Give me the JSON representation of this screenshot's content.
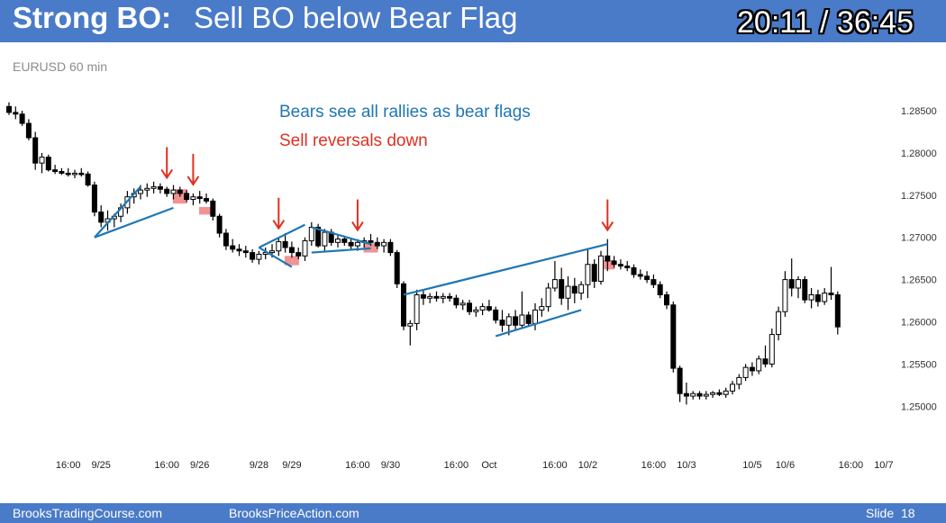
{
  "header": {
    "title_bold": "Strong BO:",
    "title_rest": "Sell BO below Bear Flag",
    "timer": "20:11 / 36:45"
  },
  "symbol_label": "EURUSD 60 min",
  "footer": {
    "left": "BrooksTradingCourse.com",
    "center": "BrooksPriceAction.com",
    "slide_label": "Slide",
    "slide_number": "18"
  },
  "colors": {
    "header_bg": "#4a7bc8",
    "trendline": "#1f77b4",
    "arrow": "#e03020",
    "highlight": "#f08080",
    "note_blue": "#1f77b4",
    "note_red": "#e03020"
  },
  "chart_data": {
    "type": "candlestick",
    "annotations": [
      "Bears see all rallies as bear flags",
      "Sell reversals down"
    ],
    "y_ticks": [
      "1.28500",
      "1.28000",
      "1.27500",
      "1.27000",
      "1.26500",
      "1.26000",
      "1.25500",
      "1.25000"
    ],
    "ylim": [
      1.247,
      1.287
    ],
    "x_ticks": [
      {
        "label": "16:00",
        "bar": 9
      },
      {
        "label": "9/25",
        "bar": 14
      },
      {
        "label": "16:00",
        "bar": 24
      },
      {
        "label": "9/26",
        "bar": 29
      },
      {
        "label": "9/28",
        "bar": 38
      },
      {
        "label": "9/29",
        "bar": 43
      },
      {
        "label": "16:00",
        "bar": 53
      },
      {
        "label": "9/30",
        "bar": 58
      },
      {
        "label": "16:00",
        "bar": 68
      },
      {
        "label": "Oct",
        "bar": 73
      },
      {
        "label": "16:00",
        "bar": 83
      },
      {
        "label": "10/2",
        "bar": 88
      },
      {
        "label": "16:00",
        "bar": 98
      },
      {
        "label": "10/3",
        "bar": 103
      },
      {
        "label": "10/5",
        "bar": 113
      },
      {
        "label": "10/6",
        "bar": 118
      },
      {
        "label": "16:00",
        "bar": 128
      },
      {
        "label": "10/7",
        "bar": 133
      }
    ],
    "candles": [
      [
        1.2855,
        1.286,
        1.2845,
        1.2848
      ],
      [
        1.2848,
        1.2855,
        1.284,
        1.2846
      ],
      [
        1.2846,
        1.285,
        1.2832,
        1.2835
      ],
      [
        1.2835,
        1.284,
        1.2815,
        1.2818
      ],
      [
        1.2818,
        1.2825,
        1.278,
        1.2788
      ],
      [
        1.2788,
        1.28,
        1.2776,
        1.2795
      ],
      [
        1.2795,
        1.2798,
        1.2778,
        1.278
      ],
      [
        1.278,
        1.2786,
        1.2775,
        1.2778
      ],
      [
        1.2778,
        1.2782,
        1.2774,
        1.2776
      ],
      [
        1.2776,
        1.2782,
        1.2772,
        1.2775
      ],
      [
        1.2775,
        1.278,
        1.277,
        1.2776
      ],
      [
        1.2776,
        1.2782,
        1.2772,
        1.2775
      ],
      [
        1.2775,
        1.2778,
        1.276,
        1.2762
      ],
      [
        1.2762,
        1.2766,
        1.2725,
        1.273
      ],
      [
        1.273,
        1.2738,
        1.2712,
        1.2718
      ],
      [
        1.2718,
        1.2732,
        1.2708,
        1.2722
      ],
      [
        1.2722,
        1.2728,
        1.2712,
        1.2725
      ],
      [
        1.2725,
        1.274,
        1.2718,
        1.2735
      ],
      [
        1.2735,
        1.2755,
        1.2728,
        1.2748
      ],
      [
        1.2748,
        1.2758,
        1.274,
        1.2752
      ],
      [
        1.2752,
        1.2762,
        1.2745,
        1.2756
      ],
      [
        1.2756,
        1.2764,
        1.2748,
        1.2758
      ],
      [
        1.2758,
        1.2766,
        1.2752,
        1.276
      ],
      [
        1.276,
        1.2764,
        1.2752,
        1.2757
      ],
      [
        1.2757,
        1.276,
        1.2748,
        1.2752
      ],
      [
        1.2752,
        1.2762,
        1.2745,
        1.2756
      ],
      [
        1.2756,
        1.276,
        1.2748,
        1.2752
      ],
      [
        1.2752,
        1.2756,
        1.2742,
        1.2745
      ],
      [
        1.2745,
        1.2752,
        1.2738,
        1.2748
      ],
      [
        1.2748,
        1.2755,
        1.274,
        1.2746
      ],
      [
        1.2746,
        1.2752,
        1.274,
        1.2743
      ],
      [
        1.2743,
        1.2746,
        1.272,
        1.2725
      ],
      [
        1.2725,
        1.2728,
        1.27,
        1.2705
      ],
      [
        1.2705,
        1.271,
        1.2685,
        1.269
      ],
      [
        1.269,
        1.2698,
        1.2682,
        1.2686
      ],
      [
        1.2686,
        1.2692,
        1.2678,
        1.2684
      ],
      [
        1.2684,
        1.269,
        1.2676,
        1.2682
      ],
      [
        1.2682,
        1.2686,
        1.267,
        1.2674
      ],
      [
        1.2674,
        1.2684,
        1.2668,
        1.268
      ],
      [
        1.268,
        1.2688,
        1.2674,
        1.2682
      ],
      [
        1.2682,
        1.2692,
        1.2676,
        1.2684
      ],
      [
        1.2684,
        1.27,
        1.2678,
        1.2695
      ],
      [
        1.2695,
        1.2705,
        1.2682,
        1.2688
      ],
      [
        1.2688,
        1.2695,
        1.2676,
        1.2682
      ],
      [
        1.2682,
        1.2688,
        1.2674,
        1.2678
      ],
      [
        1.2678,
        1.27,
        1.2672,
        1.2696
      ],
      [
        1.2696,
        1.2718,
        1.269,
        1.2712
      ],
      [
        1.2712,
        1.2716,
        1.2688,
        1.269
      ],
      [
        1.269,
        1.271,
        1.2684,
        1.2706
      ],
      [
        1.2706,
        1.271,
        1.269,
        1.2694
      ],
      [
        1.2694,
        1.2702,
        1.2688,
        1.2698
      ],
      [
        1.2698,
        1.2702,
        1.269,
        1.2694
      ],
      [
        1.2694,
        1.2698,
        1.2686,
        1.269
      ],
      [
        1.269,
        1.2698,
        1.2684,
        1.2694
      ],
      [
        1.2694,
        1.27,
        1.2688,
        1.2696
      ],
      [
        1.2696,
        1.2704,
        1.269,
        1.2694
      ],
      [
        1.2694,
        1.27,
        1.2686,
        1.269
      ],
      [
        1.269,
        1.2698,
        1.2682,
        1.2694
      ],
      [
        1.2694,
        1.2698,
        1.2678,
        1.2682
      ],
      [
        1.2682,
        1.2685,
        1.264,
        1.2645
      ],
      [
        1.2645,
        1.2648,
        1.259,
        1.2595
      ],
      [
        1.2595,
        1.2602,
        1.2572,
        1.2598
      ],
      [
        1.2598,
        1.2638,
        1.259,
        1.2632
      ],
      [
        1.2632,
        1.2638,
        1.262,
        1.2628
      ],
      [
        1.2628,
        1.2634,
        1.2622,
        1.263
      ],
      [
        1.263,
        1.2636,
        1.2624,
        1.2628
      ],
      [
        1.2628,
        1.2634,
        1.2622,
        1.263
      ],
      [
        1.263,
        1.2634,
        1.2624,
        1.2628
      ],
      [
        1.2628,
        1.2632,
        1.2616,
        1.262
      ],
      [
        1.262,
        1.2626,
        1.2614,
        1.2622
      ],
      [
        1.2622,
        1.2626,
        1.2608,
        1.2612
      ],
      [
        1.2612,
        1.2618,
        1.2606,
        1.2614
      ],
      [
        1.2614,
        1.2622,
        1.2608,
        1.2618
      ],
      [
        1.2618,
        1.2626,
        1.2612,
        1.2614
      ],
      [
        1.2614,
        1.2618,
        1.2598,
        1.2602
      ],
      [
        1.2602,
        1.2614,
        1.2588,
        1.2596
      ],
      [
        1.2596,
        1.261,
        1.2584,
        1.2606
      ],
      [
        1.2606,
        1.2614,
        1.259,
        1.2596
      ],
      [
        1.2596,
        1.2636,
        1.2592,
        1.2608
      ],
      [
        1.2608,
        1.2612,
        1.2594,
        1.2598
      ],
      [
        1.2598,
        1.2622,
        1.259,
        1.2614
      ],
      [
        1.2614,
        1.2628,
        1.2606,
        1.2618
      ],
      [
        1.2618,
        1.2646,
        1.2612,
        1.264
      ],
      [
        1.264,
        1.2672,
        1.2636,
        1.265
      ],
      [
        1.265,
        1.2664,
        1.262,
        1.2628
      ],
      [
        1.2628,
        1.2654,
        1.2614,
        1.2642
      ],
      [
        1.2642,
        1.2652,
        1.2622,
        1.2634
      ],
      [
        1.2634,
        1.2648,
        1.2626,
        1.2644
      ],
      [
        1.2644,
        1.2686,
        1.2628,
        1.2668
      ],
      [
        1.2668,
        1.2674,
        1.264,
        1.2648
      ],
      [
        1.2648,
        1.2684,
        1.2644,
        1.2678
      ],
      [
        1.2678,
        1.2698,
        1.266,
        1.2672
      ],
      [
        1.2672,
        1.2678,
        1.2664,
        1.2668
      ],
      [
        1.2668,
        1.2674,
        1.2662,
        1.2666
      ],
      [
        1.2666,
        1.2672,
        1.266,
        1.2664
      ],
      [
        1.2664,
        1.2668,
        1.2652,
        1.2656
      ],
      [
        1.2656,
        1.2662,
        1.265,
        1.2654
      ],
      [
        1.2654,
        1.266,
        1.2646,
        1.265
      ],
      [
        1.265,
        1.2656,
        1.264,
        1.2644
      ],
      [
        1.2644,
        1.2648,
        1.2628,
        1.2632
      ],
      [
        1.2632,
        1.2636,
        1.2615,
        1.262
      ],
      [
        1.262,
        1.2624,
        1.254,
        1.2545
      ],
      [
        1.2545,
        1.2548,
        1.2505,
        1.2515
      ],
      [
        1.2515,
        1.2528,
        1.2502,
        1.2512
      ],
      [
        1.2512,
        1.2518,
        1.2508,
        1.2515
      ],
      [
        1.2515,
        1.2518,
        1.2508,
        1.2512
      ],
      [
        1.2512,
        1.2518,
        1.2508,
        1.2514
      ],
      [
        1.2514,
        1.2518,
        1.251,
        1.2516
      ],
      [
        1.2516,
        1.252,
        1.2512,
        1.2514
      ],
      [
        1.2514,
        1.2522,
        1.251,
        1.2518
      ],
      [
        1.2518,
        1.253,
        1.2514,
        1.2526
      ],
      [
        1.2526,
        1.2538,
        1.252,
        1.2534
      ],
      [
        1.2534,
        1.255,
        1.253,
        1.2546
      ],
      [
        1.2546,
        1.2552,
        1.2536,
        1.2542
      ],
      [
        1.2542,
        1.256,
        1.2538,
        1.2556
      ],
      [
        1.2556,
        1.2572,
        1.2546,
        1.255
      ],
      [
        1.255,
        1.2592,
        1.2546,
        1.2585
      ],
      [
        1.2585,
        1.2618,
        1.2578,
        1.2612
      ],
      [
        1.2612,
        1.266,
        1.2606,
        1.265
      ],
      [
        1.265,
        1.2675,
        1.263,
        1.264
      ],
      [
        1.264,
        1.2654,
        1.2628,
        1.265
      ],
      [
        1.265,
        1.2654,
        1.2622,
        1.2626
      ],
      [
        1.2626,
        1.264,
        1.2616,
        1.2632
      ],
      [
        1.2632,
        1.2638,
        1.2618,
        1.2624
      ],
      [
        1.2624,
        1.264,
        1.262,
        1.2634
      ],
      [
        1.2634,
        1.2665,
        1.2626,
        1.2632
      ],
      [
        1.2632,
        1.2636,
        1.2585,
        1.2594
      ]
    ],
    "trendlines": [
      [
        13,
        1.27,
        20,
        1.276
      ],
      [
        13,
        1.27,
        25,
        1.2735
      ],
      [
        38,
        1.2688,
        45,
        1.2715
      ],
      [
        38,
        1.2688,
        43,
        1.2665
      ],
      [
        46,
        1.2712,
        55,
        1.2692
      ],
      [
        46,
        1.2682,
        55,
        1.2687
      ],
      [
        60,
        1.2632,
        91,
        1.2692
      ],
      [
        74,
        1.2583,
        87,
        1.2614
      ]
    ],
    "arrows": [
      24,
      28,
      41,
      53,
      91
    ],
    "highlights": [
      [
        26,
        1.2757,
        1.274
      ],
      [
        30,
        1.2736,
        1.2727
      ],
      [
        43,
        1.2678,
        1.2667
      ],
      [
        55,
        1.2693,
        1.2682
      ],
      [
        91,
        1.2673,
        1.2662
      ]
    ]
  }
}
